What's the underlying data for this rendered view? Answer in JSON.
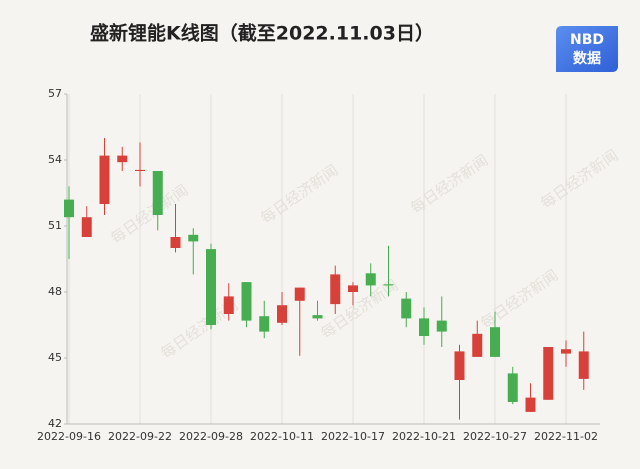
{
  "chart_data": {
    "type": "candlestick",
    "title": "盛新锂能K线图（截至2022.11.03日）",
    "logo": {
      "top": "NBD",
      "bottom": "数据"
    },
    "watermark": "每日经济新闻",
    "categories": [
      "2022-09-16",
      null,
      null,
      null,
      "2022-09-22",
      null,
      null,
      null,
      "2022-09-28",
      null,
      null,
      null,
      "2022-10-11",
      null,
      null,
      null,
      "2022-10-17",
      null,
      null,
      null,
      "2022-10-21",
      null,
      null,
      null,
      "2022-10-27",
      null,
      null,
      null,
      "2022-11-02",
      null
    ],
    "open": [
      52.2,
      50.5,
      52.0,
      53.9,
      53.5,
      53.5,
      50.0,
      50.6,
      49.95,
      47.0,
      48.45,
      46.9,
      46.6,
      47.6,
      46.95,
      47.45,
      48.0,
      48.85,
      48.35,
      47.7,
      46.8,
      46.7,
      44.0,
      45.05,
      46.4,
      44.3,
      42.55,
      43.1,
      45.2,
      44.05
    ],
    "high": [
      52.8,
      51.9,
      55.0,
      54.6,
      54.8,
      53.5,
      52.0,
      50.9,
      50.2,
      48.4,
      48.45,
      47.6,
      48.0,
      48.2,
      47.6,
      49.2,
      48.45,
      49.3,
      50.1,
      48.0,
      47.3,
      47.8,
      45.6,
      46.7,
      47.1,
      44.6,
      43.85,
      45.5,
      45.8,
      46.2
    ],
    "low": [
      49.5,
      50.5,
      51.5,
      53.5,
      52.8,
      50.8,
      49.8,
      48.8,
      46.3,
      46.7,
      46.4,
      45.9,
      46.5,
      45.1,
      46.7,
      47.0,
      47.4,
      47.8,
      47.8,
      46.4,
      45.6,
      45.5,
      42.2,
      45.05,
      45.05,
      42.9,
      42.55,
      43.1,
      44.6,
      43.55
    ],
    "close": [
      51.4,
      51.4,
      54.2,
      54.2,
      53.55,
      51.5,
      50.5,
      50.3,
      46.5,
      47.8,
      46.7,
      46.2,
      47.4,
      48.2,
      46.8,
      48.8,
      48.3,
      48.3,
      48.3,
      46.8,
      46.0,
      46.2,
      45.3,
      46.1,
      45.05,
      43.0,
      43.2,
      45.5,
      45.4,
      45.3
    ],
    "up_color": "#d8413a",
    "down_color": "#46ad51",
    "ylim": [
      42,
      57
    ],
    "yticks": [
      42,
      45,
      48,
      51,
      54,
      57
    ]
  }
}
